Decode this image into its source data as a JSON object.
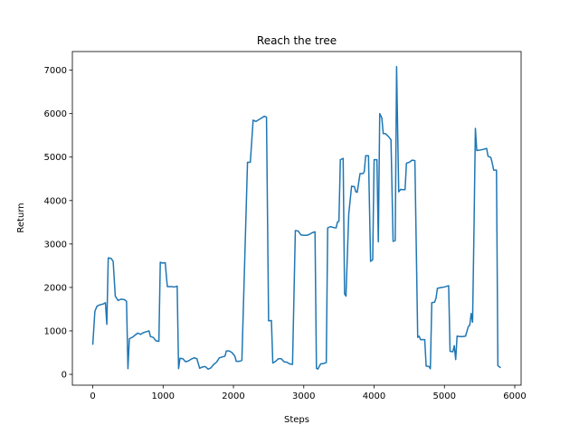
{
  "chart_data": {
    "type": "line",
    "title": "Reach the tree",
    "xlabel": "Steps",
    "ylabel": "Return",
    "color": "#1f77b4",
    "x": [
      0,
      30,
      60,
      100,
      150,
      180,
      200,
      220,
      260,
      290,
      320,
      360,
      400,
      450,
      480,
      500,
      520,
      560,
      600,
      640,
      680,
      720,
      760,
      800,
      820,
      860,
      900,
      940,
      960,
      990,
      1030,
      1060,
      1120,
      1160,
      1200,
      1220,
      1240,
      1280,
      1320,
      1360,
      1400,
      1440,
      1480,
      1520,
      1560,
      1600,
      1640,
      1680,
      1720,
      1760,
      1800,
      1840,
      1880,
      1900,
      1940,
      1980,
      2020,
      2040,
      2080,
      2120,
      2200,
      2240,
      2280,
      2320,
      2360,
      2400,
      2440,
      2470,
      2500,
      2540,
      2560,
      2600,
      2640,
      2680,
      2720,
      2760,
      2800,
      2840,
      2880,
      2920,
      2960,
      3000,
      3040,
      3080,
      3120,
      3160,
      3180,
      3200,
      3240,
      3280,
      3320,
      3340,
      3380,
      3420,
      3460,
      3480,
      3500,
      3520,
      3560,
      3580,
      3600,
      3640,
      3680,
      3720,
      3740,
      3760,
      3800,
      3840,
      3860,
      3880,
      3920,
      3950,
      3980,
      4000,
      4040,
      4060,
      4080,
      4110,
      4130,
      4160,
      4200,
      4240,
      4270,
      4300,
      4320,
      4350,
      4380,
      4400,
      4440,
      4460,
      4500,
      4540,
      4580,
      4620,
      4640,
      4660,
      4720,
      4740,
      4780,
      4800,
      4820,
      4860,
      4880,
      4900,
      4960,
      5000,
      5040,
      5060,
      5080,
      5120,
      5140,
      5160,
      5180,
      5220,
      5260,
      5300,
      5340,
      5360,
      5380,
      5400,
      5420,
      5440,
      5460,
      5500,
      5560,
      5600,
      5620,
      5660,
      5680,
      5700,
      5740,
      5760,
      5800
    ],
    "values": [
      680,
      1450,
      1570,
      1600,
      1620,
      1650,
      1150,
      2680,
      2670,
      2600,
      1800,
      1700,
      1730,
      1720,
      1680,
      130,
      820,
      850,
      900,
      950,
      920,
      960,
      980,
      1000,
      870,
      850,
      770,
      760,
      2580,
      2560,
      2570,
      2020,
      2020,
      2010,
      2030,
      130,
      370,
      360,
      290,
      310,
      350,
      380,
      360,
      140,
      170,
      180,
      120,
      150,
      230,
      280,
      380,
      400,
      420,
      540,
      540,
      500,
      420,
      300,
      300,
      320,
      4880,
      4880,
      5850,
      5820,
      5860,
      5900,
      5940,
      5920,
      1230,
      1240,
      260,
      300,
      360,
      360,
      290,
      280,
      240,
      230,
      3310,
      3300,
      3210,
      3200,
      3200,
      3220,
      3260,
      3280,
      140,
      120,
      240,
      250,
      270,
      3370,
      3400,
      3380,
      3370,
      3510,
      3520,
      4940,
      4970,
      1850,
      1800,
      3700,
      4330,
      4320,
      4200,
      4190,
      4620,
      4620,
      4660,
      5030,
      5030,
      2600,
      2640,
      4940,
      4940,
      3050,
      6000,
      5900,
      5540,
      5540,
      5480,
      5400,
      3060,
      3080,
      7080,
      4200,
      4260,
      4250,
      4250,
      4860,
      4880,
      4930,
      4920,
      850,
      880,
      800,
      800,
      190,
      180,
      130,
      1650,
      1660,
      1750,
      1980,
      2000,
      2010,
      2030,
      2040,
      530,
      520,
      660,
      340,
      880,
      870,
      870,
      880,
      1100,
      1130,
      1400,
      1200,
      3300,
      5660,
      5150,
      5160,
      5180,
      5200,
      5020,
      4990,
      4860,
      4700,
      4700,
      200,
      150
    ],
    "xlim": [
      -290,
      6090
    ],
    "ylim": [
      -249,
      7429
    ],
    "xticks": [
      0,
      1000,
      2000,
      3000,
      4000,
      5000,
      6000
    ],
    "yticks": [
      0,
      1000,
      2000,
      3000,
      4000,
      5000,
      6000,
      7000
    ]
  }
}
